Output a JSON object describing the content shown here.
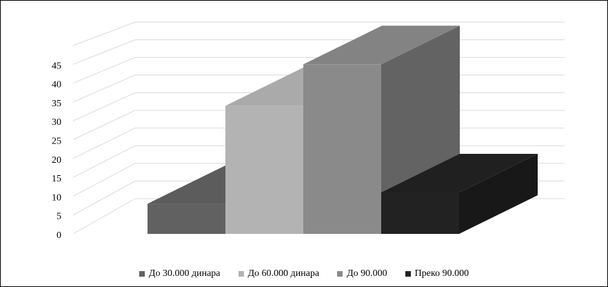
{
  "chart_data": {
    "type": "bar",
    "style": "3d-clustered-column",
    "categories": [
      ""
    ],
    "series": [
      {
        "name": "До 30.000 динара",
        "values": [
          8
        ],
        "color": "#616161"
      },
      {
        "name": "До 60.000 динара",
        "values": [
          34
        ],
        "color": "#b3b3b3"
      },
      {
        "name": "До 90.000",
        "values": [
          45
        ],
        "color": "#8a8a8a"
      },
      {
        "name": "Преко 90.000",
        "values": [
          11
        ],
        "color": "#222222"
      }
    ],
    "yticks": [
      "0",
      "5",
      "10",
      "15",
      "20",
      "25",
      "30",
      "35",
      "40",
      "45"
    ],
    "ylim": [
      0,
      50
    ],
    "grid": true,
    "legend_position": "bottom",
    "title": "",
    "xlabel": "",
    "ylabel": ""
  }
}
